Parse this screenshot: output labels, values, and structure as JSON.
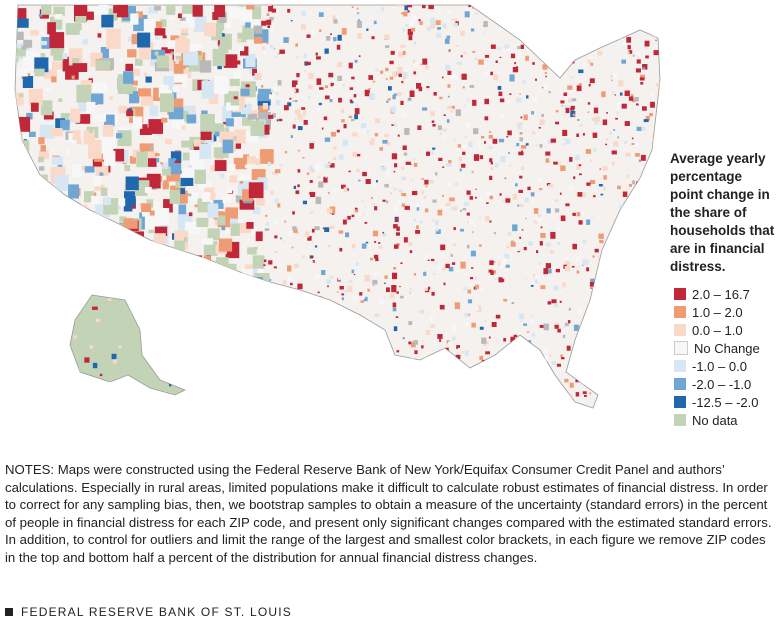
{
  "legend": {
    "title": "Average yearly percentage point change in the share of households that are in financial distress.",
    "items": [
      {
        "label": "2.0 – 16.7",
        "color": "#c0283a"
      },
      {
        "label": "1.0 – 2.0",
        "color": "#ef9b74"
      },
      {
        "label": "0.0 – 1.0",
        "color": "#fbd9c8"
      },
      {
        "label": "No Change",
        "color": "#f7f7f7"
      },
      {
        "label": "-1.0 – 0.0",
        "color": "#d6e6f3"
      },
      {
        "label": "-2.0 – -1.0",
        "color": "#6fa6d3"
      },
      {
        "label": "-12.5 – -2.0",
        "color": "#1f68ad"
      },
      {
        "label": "No data",
        "color": "#c2d3b6"
      }
    ]
  },
  "notes": "NOTES: Maps were constructed using the Federal Reserve Bank of New York/Equifax Consumer Credit Panel and authors’ calculations. Especially in rural areas, limited populations make it difficult to calculate robust estimates of financial distress. In order to correct for any sampling bias, then, we bootstrap samples to obtain a measure of the uncertainty (standard errors) in the percent of people in financial distress for each ZIP code, and present only significant changes compared with the estimated standard errors. In addition, to control for outliers and limit the range of the largest and smallest color brackets, in each figure we remove ZIP codes in the top and bottom half a percent of the distribution for annual financial distress changes.",
  "source": "FEDERAL RESERVE BANK OF ST. LOUIS"
}
